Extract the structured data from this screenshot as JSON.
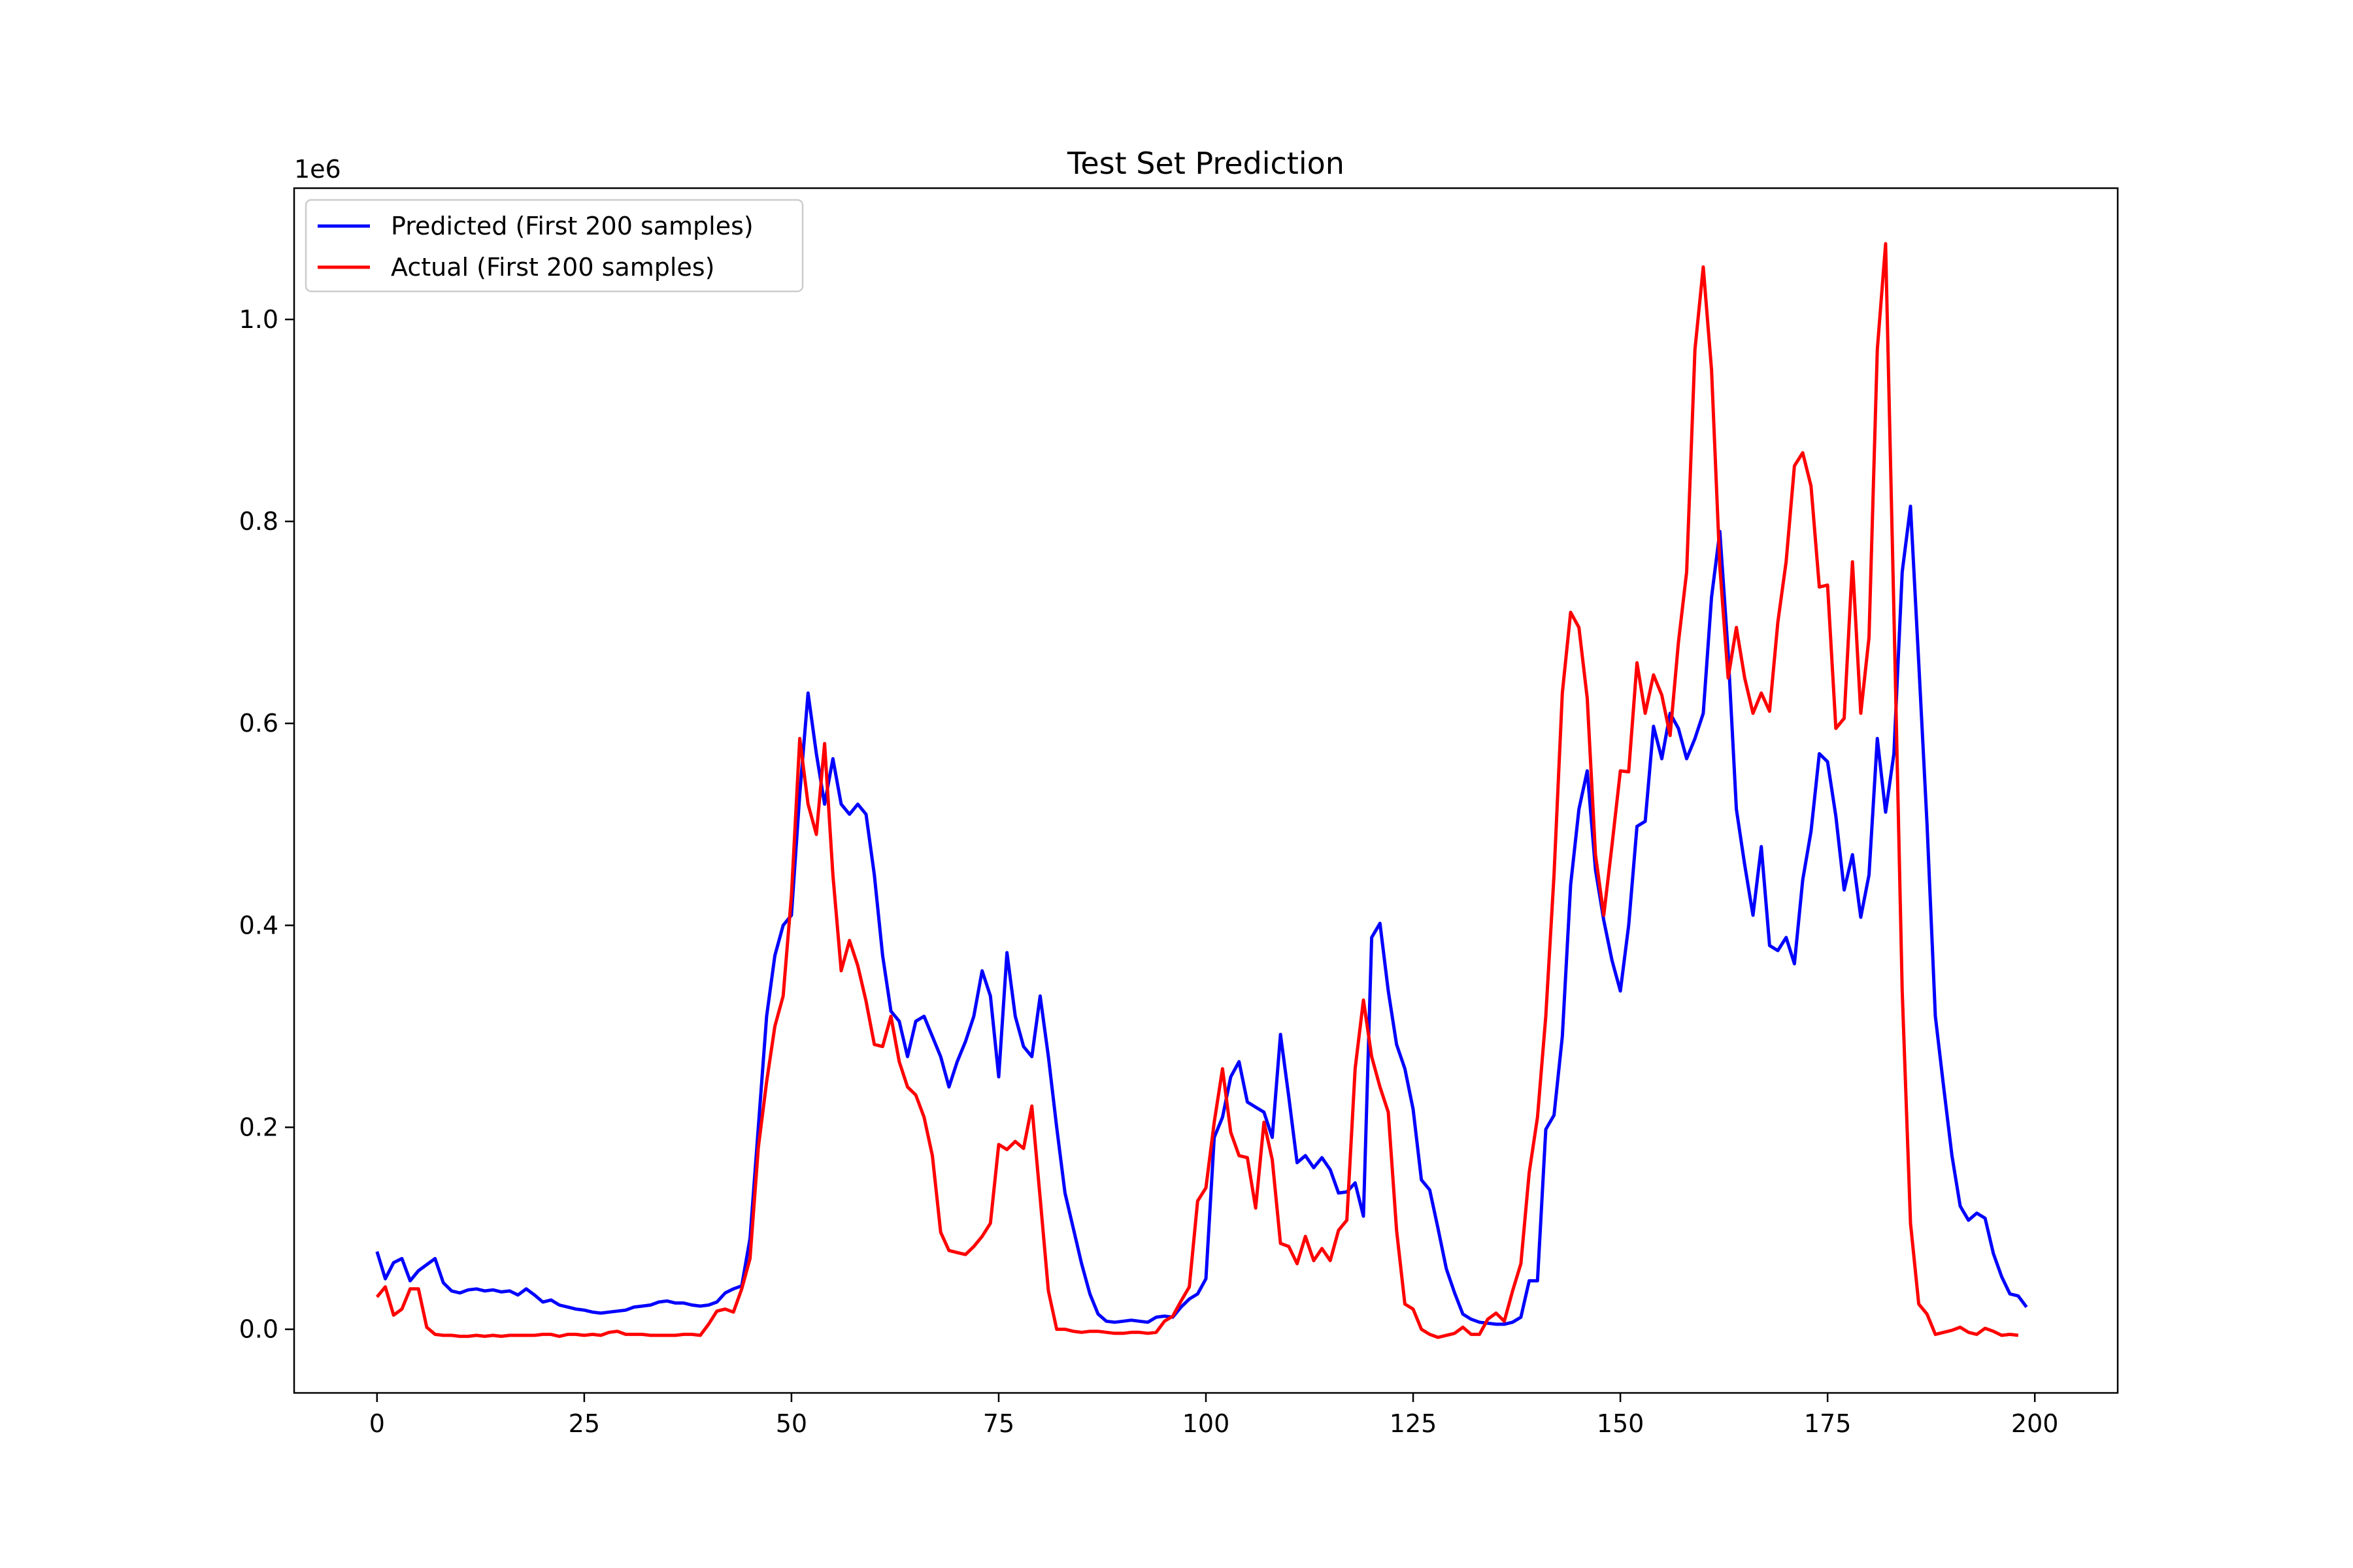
{
  "chart_data": {
    "type": "line",
    "title": "Test Set Prediction",
    "xlabel": "",
    "ylabel": "",
    "y_offset_label": "1e6",
    "xlim": [
      -10,
      210
    ],
    "ylim": [
      -0.063,
      1.13
    ],
    "x_ticks": [
      0,
      25,
      50,
      75,
      100,
      125,
      150,
      175,
      200
    ],
    "x_tick_labels": [
      "0",
      "25",
      "50",
      "75",
      "100",
      "125",
      "150",
      "175",
      "200"
    ],
    "y_ticks": [
      0.0,
      0.2,
      0.4,
      0.6,
      0.8,
      1.0
    ],
    "y_tick_labels": [
      "0.0",
      "0.2",
      "0.4",
      "0.6",
      "0.8",
      "1.0"
    ],
    "grid": false,
    "legend_position": "upper-left",
    "series": [
      {
        "name": "Predicted (First 200 samples)",
        "color": "#0000ff",
        "values": [
          0.077,
          0.05,
          0.066,
          0.07,
          0.048,
          0.058,
          0.064,
          0.07,
          0.046,
          0.038,
          0.036,
          0.039,
          0.04,
          0.038,
          0.039,
          0.037,
          0.038,
          0.034,
          0.04,
          0.034,
          0.027,
          0.029,
          0.024,
          0.022,
          0.02,
          0.019,
          0.017,
          0.016,
          0.017,
          0.018,
          0.019,
          0.022,
          0.023,
          0.024,
          0.027,
          0.028,
          0.026,
          0.026,
          0.024,
          0.023,
          0.024,
          0.027,
          0.036,
          0.04,
          0.043,
          0.09,
          0.2,
          0.31,
          0.37,
          0.4,
          0.41,
          0.53,
          0.63,
          0.57,
          0.52,
          0.565,
          0.52,
          0.51,
          0.52,
          0.51,
          0.45,
          0.37,
          0.315,
          0.305,
          0.27,
          0.305,
          0.31,
          0.29,
          0.27,
          0.24,
          0.265,
          0.285,
          0.31,
          0.355,
          0.33,
          0.25,
          0.373,
          0.31,
          0.28,
          0.27,
          0.33,
          0.27,
          0.2,
          0.135,
          0.1,
          0.065,
          0.035,
          0.015,
          0.008,
          0.007,
          0.008,
          0.009,
          0.008,
          0.007,
          0.012,
          0.013,
          0.012,
          0.022,
          0.03,
          0.035,
          0.05,
          0.19,
          0.21,
          0.25,
          0.265,
          0.225,
          0.22,
          0.215,
          0.19,
          0.292,
          0.23,
          0.165,
          0.172,
          0.16,
          0.17,
          0.158,
          0.135,
          0.136,
          0.145,
          0.112,
          0.388,
          0.402,
          0.335,
          0.282,
          0.258,
          0.218,
          0.148,
          0.138,
          0.1,
          0.06,
          0.036,
          0.015,
          0.01,
          0.007,
          0.006,
          0.005,
          0.005,
          0.007,
          0.012,
          0.048,
          0.048,
          0.198,
          0.212,
          0.29,
          0.44,
          0.515,
          0.553,
          0.455,
          0.405,
          0.365,
          0.335,
          0.4,
          0.498,
          0.503,
          0.597,
          0.565,
          0.61,
          0.595,
          0.565,
          0.585,
          0.61,
          0.725,
          0.79,
          0.67,
          0.515,
          0.46,
          0.41,
          0.478,
          0.38,
          0.375,
          0.388,
          0.362,
          0.445,
          0.493,
          0.57,
          0.562,
          0.508,
          0.435,
          0.47,
          0.408,
          0.45,
          0.585,
          0.512,
          0.57,
          0.75,
          0.815,
          0.66,
          0.5,
          0.31,
          0.24,
          0.172,
          0.122,
          0.108,
          0.115,
          0.11,
          0.075,
          0.052,
          0.035,
          0.033,
          0.022
        ]
      },
      {
        "name": "Actual (First 200 samples)",
        "color": "#ff0000",
        "values": [
          0.032,
          0.042,
          0.014,
          0.02,
          0.04,
          0.04,
          0.002,
          -0.005,
          -0.006,
          -0.006,
          -0.007,
          -0.007,
          -0.006,
          -0.007,
          -0.006,
          -0.007,
          -0.006,
          -0.006,
          -0.006,
          -0.006,
          -0.005,
          -0.005,
          -0.007,
          -0.005,
          -0.005,
          -0.006,
          -0.005,
          -0.006,
          -0.003,
          -0.002,
          -0.005,
          -0.005,
          -0.005,
          -0.006,
          -0.006,
          -0.006,
          -0.006,
          -0.005,
          -0.005,
          -0.006,
          0.005,
          0.018,
          0.02,
          0.017,
          0.04,
          0.07,
          0.18,
          0.245,
          0.3,
          0.33,
          0.43,
          0.585,
          0.52,
          0.49,
          0.58,
          0.45,
          0.355,
          0.385,
          0.36,
          0.325,
          0.282,
          0.28,
          0.31,
          0.265,
          0.24,
          0.232,
          0.21,
          0.172,
          0.096,
          0.078,
          0.076,
          0.074,
          0.082,
          0.092,
          0.105,
          0.183,
          0.178,
          0.186,
          0.179,
          0.221,
          0.13,
          0.038,
          0.0,
          0.0,
          -0.002,
          -0.003,
          -0.002,
          -0.002,
          -0.003,
          -0.004,
          -0.004,
          -0.003,
          -0.003,
          -0.004,
          -0.003,
          0.008,
          0.013,
          0.028,
          0.042,
          0.127,
          0.14,
          0.205,
          0.258,
          0.195,
          0.172,
          0.17,
          0.12,
          0.205,
          0.168,
          0.085,
          0.082,
          0.065,
          0.092,
          0.068,
          0.08,
          0.068,
          0.098,
          0.108,
          0.258,
          0.326,
          0.27,
          0.24,
          0.215,
          0.098,
          0.025,
          0.02,
          0.0,
          -0.005,
          -0.008,
          -0.006,
          -0.004,
          0.002,
          -0.005,
          -0.005,
          0.01,
          0.016,
          0.008,
          0.038,
          0.065,
          0.155,
          0.21,
          0.31,
          0.45,
          0.63,
          0.71,
          0.695,
          0.625,
          0.47,
          0.41,
          0.48,
          0.553,
          0.552,
          0.66,
          0.61,
          0.648,
          0.628,
          0.588,
          0.68,
          0.75,
          0.97,
          1.052,
          0.95,
          0.755,
          0.645,
          0.695,
          0.645,
          0.61,
          0.63,
          0.612,
          0.7,
          0.76,
          0.855,
          0.868,
          0.835,
          0.735,
          0.737,
          0.595,
          0.605,
          0.76,
          0.61,
          0.685,
          0.97,
          1.075,
          0.71,
          0.335,
          0.105,
          0.025,
          0.015,
          -0.005,
          -0.003,
          -0.001,
          0.002,
          -0.003,
          -0.005,
          0.001,
          -0.002,
          -0.006,
          -0.005,
          -0.006
        ]
      }
    ]
  }
}
